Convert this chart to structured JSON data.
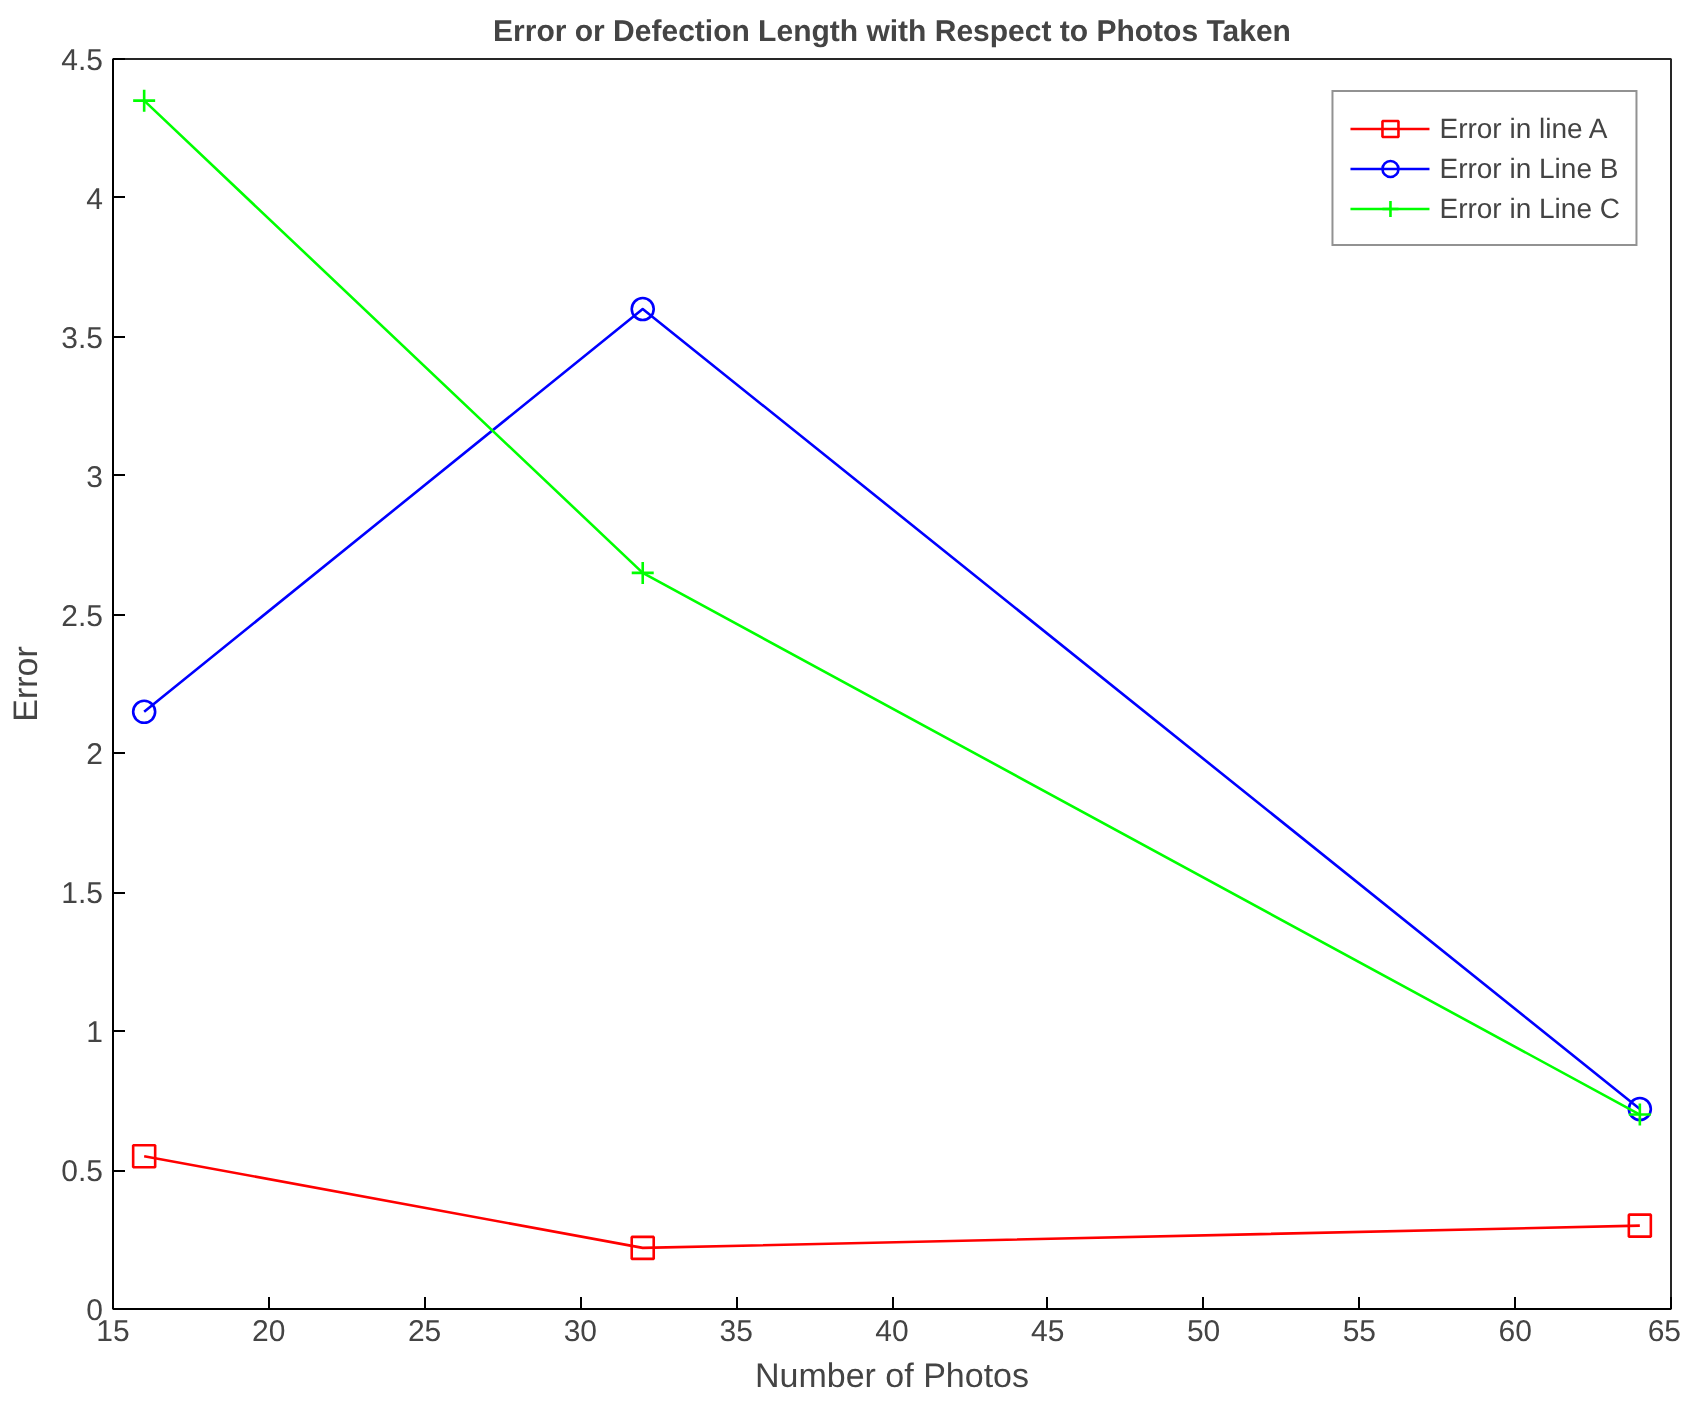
{
  "chart_data": {
    "type": "line",
    "title": "Error or Defection Length with Respect to Photos Taken",
    "xlabel": "Number of Photos",
    "ylabel": "Error",
    "x": [
      16,
      32,
      64
    ],
    "series": [
      {
        "name": "Error in line A",
        "color": "#ff0000",
        "marker": "square",
        "values": [
          0.55,
          0.22,
          0.3
        ]
      },
      {
        "name": "Error in Line B",
        "color": "#0000ff",
        "marker": "circle",
        "values": [
          2.15,
          3.6,
          0.72
        ]
      },
      {
        "name": "Error in Line C",
        "color": "#00ff00",
        "marker": "cross",
        "values": [
          4.35,
          2.65,
          0.7
        ]
      }
    ],
    "xlim": [
      15,
      65
    ],
    "xticks": [
      15,
      20,
      25,
      30,
      35,
      40,
      45,
      50,
      55,
      60,
      65
    ],
    "ylim": [
      0,
      4.5
    ],
    "yticks": [
      0,
      0.5,
      1,
      1.5,
      2,
      2.5,
      3,
      3.5,
      4,
      4.5
    ],
    "grid": false,
    "legend": "top right",
    "line_style": "solid"
  }
}
